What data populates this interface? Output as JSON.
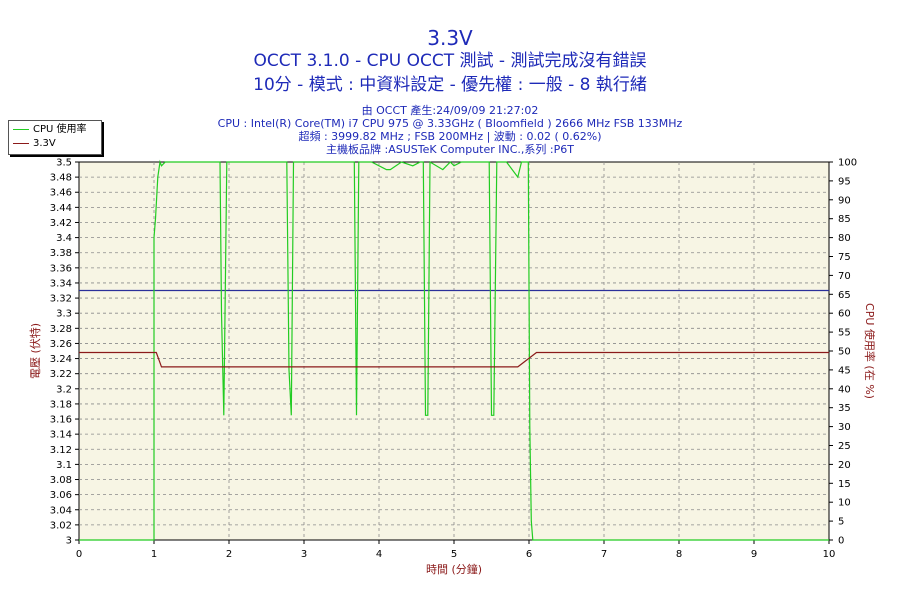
{
  "title": {
    "main": "3.3V",
    "line2": "OCCT 3.1.0 - CPU OCCT 測試 - 測試完成沒有錯誤",
    "line3": "10分 - 模式 : 中資料設定 - 優先權 : 一般 - 8 執行緒"
  },
  "info": {
    "created": "由 OCCT 產生:24/09/09 21:27:02",
    "cpu": "CPU : Intel(R) Core(TM) i7 CPU 975 @ 3.33GHz ( Bloomfield ) 2666 MHz FSB 133MHz",
    "oc": "超頻 : 3999.82 MHz ; FSB 200MHz | 波動 : 0.02 ( 0.62%)",
    "board": "主機板品牌 :ASUSTeK Computer INC.,系列 :P6T"
  },
  "colors": {
    "cpu_line": "#22cc22",
    "volt_line": "#8b1a1a",
    "ref_line": "#2a2f9a",
    "plot_bg": "#f7f5e4",
    "axis_label": "#8b1a1a",
    "title": "#1e2ab8"
  },
  "chart_data": {
    "type": "line",
    "xlabel": "時間 (分鐘)",
    "ylabel_left": "電壓 (伏特)",
    "ylabel_right": "CPU 使用率 (在 %)",
    "xlim": [
      0,
      10
    ],
    "ylim_left": [
      3.0,
      3.5
    ],
    "ylim_right": [
      0,
      100
    ],
    "x_ticks": [
      "0",
      "1",
      "2",
      "3",
      "4",
      "5",
      "6",
      "7",
      "8",
      "9",
      "10"
    ],
    "y_left_ticks": [
      "3",
      "3.02",
      "3.04",
      "3.06",
      "3.08",
      "3.1",
      "3.12",
      "3.14",
      "3.16",
      "3.18",
      "3.2",
      "3.22",
      "3.24",
      "3.26",
      "3.28",
      "3.3",
      "3.32",
      "3.34",
      "3.36",
      "3.38",
      "3.4",
      "3.42",
      "3.44",
      "3.46",
      "3.48",
      "3.5"
    ],
    "y_right_ticks": [
      "0",
      "5",
      "10",
      "15",
      "20",
      "25",
      "30",
      "35",
      "40",
      "45",
      "50",
      "55",
      "60",
      "65",
      "70",
      "75",
      "80",
      "85",
      "90",
      "95",
      "100"
    ],
    "grid": true,
    "legend": "top-left",
    "reference_line": {
      "axis": "left",
      "value": 3.33
    },
    "series": [
      {
        "name": "CPU 使用率",
        "axis": "right",
        "x": [
          0,
          1.0,
          1.0,
          1.02,
          1.05,
          1.08,
          1.1,
          1.15,
          1.3,
          1.5,
          1.7,
          1.88,
          1.9,
          1.93,
          1.97,
          2.0,
          2.3,
          2.6,
          2.77,
          2.8,
          2.83,
          2.86,
          3.0,
          3.3,
          3.6,
          3.67,
          3.7,
          3.73,
          3.76,
          3.9,
          4.1,
          4.15,
          4.3,
          4.45,
          4.55,
          4.59,
          4.62,
          4.65,
          4.68,
          4.85,
          4.95,
          5.0,
          5.1,
          5.3,
          5.47,
          5.5,
          5.53,
          5.57,
          5.7,
          5.85,
          5.9,
          5.95,
          5.99,
          6.01,
          6.03,
          6.05,
          10
        ],
        "values": [
          0,
          0,
          80,
          85,
          96,
          100,
          99,
          100,
          100,
          100,
          100,
          100,
          60,
          33,
          100,
          100,
          100,
          100,
          100,
          45,
          33,
          100,
          100,
          100,
          100,
          100,
          33,
          100,
          100,
          100,
          98,
          98,
          100,
          99,
          100,
          100,
          33,
          33,
          100,
          98,
          100,
          99,
          100,
          100,
          100,
          33,
          33,
          100,
          100,
          96,
          100,
          100,
          100,
          30,
          5,
          0,
          0
        ]
      },
      {
        "name": "3.3V",
        "axis": "left",
        "x": [
          0,
          1.03,
          1.1,
          5.85,
          6.1,
          10
        ],
        "values": [
          3.248,
          3.248,
          3.229,
          3.229,
          3.248,
          3.248
        ]
      }
    ]
  }
}
